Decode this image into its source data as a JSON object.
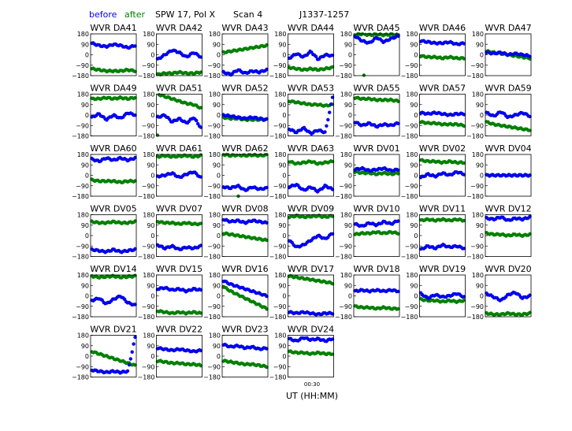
{
  "header": {
    "before_label": "before",
    "after_label": "after",
    "spw_pol": "SPW 17, Pol X",
    "scan": "Scan 4",
    "source": "J1337-1257"
  },
  "colors": {
    "before": "#0000ee",
    "after": "#008000"
  },
  "x_label": "UT (HH:MM)",
  "x_tick_label": "00:30",
  "y_ticks": [
    "180",
    "90",
    "0",
    "−90",
    "−180"
  ],
  "chart_data": {
    "type": "scatter",
    "x": "UT (HH:MM)",
    "ylim": [
      -180,
      180
    ],
    "yticks": [
      180,
      90,
      0,
      -90,
      -180
    ],
    "series_names": [
      "before",
      "after"
    ],
    "panels": [
      {
        "title": "WVR DA41",
        "before": [
          100,
          80,
          70,
          90,
          80,
          60,
          80
        ],
        "after": [
          -120,
          -130,
          -140,
          -140,
          -140,
          -130,
          -140
        ]
      },
      {
        "title": "WVR DA42",
        "before": [
          -40,
          0,
          40,
          20,
          -20,
          20,
          -20
        ],
        "after": [
          -170,
          -160,
          -160,
          -150,
          -160,
          -160,
          -150
        ]
      },
      {
        "title": "WVR DA43",
        "before": [
          -150,
          -170,
          -130,
          -160,
          -140,
          -150,
          -130
        ],
        "after": [
          20,
          30,
          40,
          50,
          60,
          70,
          80
        ]
      },
      {
        "title": "WVR DA44",
        "before": [
          -30,
          10,
          -20,
          30,
          -40,
          0,
          -10
        ],
        "after": [
          -110,
          -120,
          -130,
          -120,
          -130,
          -120,
          -110
        ]
      },
      {
        "title": "WVR DA45",
        "before": [
          160,
          120,
          100,
          150,
          110,
          140,
          160
        ],
        "after": [
          170,
          180,
          170,
          175,
          170,
          175,
          170
        ]
      },
      {
        "title": "WVR DA46",
        "before": [
          120,
          110,
          100,
          100,
          110,
          90,
          100
        ],
        "after": [
          -10,
          -20,
          -20,
          -30,
          -20,
          -30,
          -30
        ]
      },
      {
        "title": "WVR DA47",
        "before": [
          20,
          10,
          20,
          0,
          10,
          0,
          -10
        ],
        "after": [
          30,
          20,
          10,
          0,
          -10,
          -20,
          -30
        ]
      },
      {
        "title": "WVR DA49",
        "before": [
          -20,
          10,
          -40,
          0,
          -30,
          20,
          0
        ],
        "after": [
          140,
          140,
          150,
          140,
          150,
          140,
          150
        ]
      },
      {
        "title": "WVR DA51",
        "before": [
          -20,
          0,
          -60,
          -30,
          -70,
          -20,
          -110
        ],
        "after": [
          180,
          160,
          140,
          120,
          100,
          90,
          60
        ]
      },
      {
        "title": "WVR DA52",
        "before": [
          0,
          -10,
          -20,
          -30,
          -20,
          -30,
          -40
        ],
        "after": [
          -20,
          -30,
          -30,
          -40,
          -40,
          -40,
          -40
        ]
      },
      {
        "title": "WVR DA53",
        "before": [
          -120,
          -150,
          -110,
          -160,
          -130,
          -150,
          150
        ],
        "after": [
          120,
          110,
          100,
          90,
          90,
          80,
          90
        ]
      },
      {
        "title": "WVR DA55",
        "before": [
          -60,
          -90,
          -70,
          -100,
          -80,
          -90,
          -70
        ],
        "after": [
          150,
          140,
          140,
          130,
          130,
          130,
          120
        ]
      },
      {
        "title": "WVR DA57",
        "before": [
          20,
          10,
          20,
          10,
          0,
          10,
          10
        ],
        "after": [
          -60,
          -70,
          -70,
          -80,
          -80,
          -80,
          -90
        ]
      },
      {
        "title": "WVR DA59",
        "before": [
          20,
          -10,
          30,
          -20,
          0,
          20,
          -10
        ],
        "after": [
          -60,
          -80,
          -90,
          -100,
          -110,
          -120,
          -130
        ]
      },
      {
        "title": "WVR DA60",
        "before": [
          140,
          120,
          150,
          130,
          150,
          130,
          150
        ],
        "after": [
          -40,
          -50,
          -50,
          -50,
          -60,
          -50,
          -50
        ]
      },
      {
        "title": "WVR DA61",
        "before": [
          -10,
          0,
          20,
          -20,
          10,
          30,
          -20
        ],
        "after": [
          160,
          170,
          160,
          165,
          170,
          160,
          170
        ]
      },
      {
        "title": "WVR DA62",
        "before": [
          -100,
          -110,
          -90,
          -130,
          -100,
          -120,
          -110
        ],
        "after": [
          180,
          170,
          175,
          170,
          175,
          170,
          175
        ]
      },
      {
        "title": "WVR DA63",
        "before": [
          -100,
          -80,
          -130,
          -100,
          -140,
          -90,
          -120
        ],
        "after": [
          120,
          100,
          110,
          120,
          100,
          110,
          120
        ]
      },
      {
        "title": "WVR DV01",
        "before": [
          50,
          60,
          40,
          50,
          60,
          40,
          50
        ],
        "after": [
          30,
          20,
          20,
          10,
          20,
          10,
          20
        ]
      },
      {
        "title": "WVR DV02",
        "before": [
          -20,
          10,
          -10,
          20,
          0,
          30,
          10
        ],
        "after": [
          130,
          120,
          120,
          110,
          120,
          110,
          110
        ]
      },
      {
        "title": "WVR DV04",
        "before": [
          0,
          0,
          0,
          0,
          0,
          0,
          0
        ],
        "after": [
          0,
          0,
          0,
          0,
          0,
          0,
          0
        ]
      },
      {
        "title": "WVR DV05",
        "before": [
          -120,
          -130,
          -140,
          -120,
          -140,
          -130,
          -120
        ],
        "after": [
          120,
          110,
          110,
          120,
          110,
          110,
          120
        ]
      },
      {
        "title": "WVR DV07",
        "before": [
          -80,
          -110,
          -90,
          -120,
          -100,
          -110,
          -90
        ],
        "after": [
          120,
          110,
          110,
          100,
          110,
          100,
          100
        ]
      },
      {
        "title": "WVR DV08",
        "before": [
          140,
          120,
          130,
          110,
          130,
          120,
          110
        ],
        "after": [
          20,
          10,
          0,
          -10,
          -20,
          -30,
          -40
        ]
      },
      {
        "title": "WVR DV09",
        "before": [
          -40,
          -100,
          -80,
          -40,
          0,
          -30,
          20
        ],
        "after": [
          160,
          170,
          160,
          165,
          170,
          160,
          170
        ]
      },
      {
        "title": "WVR DV10",
        "before": [
          100,
          80,
          110,
          90,
          120,
          100,
          130
        ],
        "after": [
          10,
          20,
          20,
          30,
          20,
          30,
          20
        ]
      },
      {
        "title": "WVR DV11",
        "before": [
          -120,
          -90,
          -110,
          -80,
          -100,
          -90,
          -110
        ],
        "after": [
          130,
          140,
          130,
          140,
          130,
          140,
          130
        ]
      },
      {
        "title": "WVR DV12",
        "before": [
          150,
          140,
          160,
          130,
          150,
          140,
          160
        ],
        "after": [
          20,
          10,
          10,
          0,
          10,
          0,
          10
        ]
      },
      {
        "title": "WVR DV14",
        "before": [
          -40,
          -20,
          -70,
          -30,
          0,
          -60,
          -80
        ],
        "after": [
          170,
          160,
          165,
          170,
          160,
          165,
          170
        ]
      },
      {
        "title": "WVR DV15",
        "before": [
          60,
          70,
          50,
          60,
          40,
          60,
          50
        ],
        "after": [
          -130,
          -140,
          -150,
          -140,
          -150,
          -140,
          -150
        ]
      },
      {
        "title": "WVR DV16",
        "before": [
          130,
          100,
          80,
          60,
          40,
          20,
          0
        ],
        "after": [
          80,
          40,
          10,
          -20,
          -50,
          -80,
          -110
        ]
      },
      {
        "title": "WVR DV17",
        "before": [
          -140,
          -150,
          -140,
          -150,
          -160,
          -150,
          -150
        ],
        "after": [
          170,
          160,
          150,
          140,
          130,
          120,
          110
        ]
      },
      {
        "title": "WVR DV18",
        "before": [
          40,
          50,
          40,
          50,
          40,
          50,
          40
        ],
        "after": [
          -90,
          -100,
          -100,
          -110,
          -100,
          -110,
          -110
        ]
      },
      {
        "title": "WVR DV19",
        "before": [
          20,
          -20,
          10,
          -10,
          0,
          20,
          -10
        ],
        "after": [
          -30,
          -40,
          -40,
          -50,
          -40,
          -50,
          -40
        ]
      },
      {
        "title": "WVR DV20",
        "before": [
          20,
          -10,
          -40,
          10,
          30,
          -20,
          0
        ],
        "after": [
          -150,
          -160,
          -160,
          -150,
          -160,
          -160,
          -150
        ]
      },
      {
        "title": "WVR DV21",
        "before": [
          -120,
          -130,
          -140,
          -130,
          -140,
          -130,
          160
        ],
        "after": [
          40,
          20,
          0,
          -20,
          -40,
          -60,
          -80
        ]
      },
      {
        "title": "WVR DV22",
        "before": [
          70,
          60,
          50,
          60,
          50,
          40,
          50
        ],
        "after": [
          -40,
          -50,
          -60,
          -60,
          -70,
          -70,
          -80
        ]
      },
      {
        "title": "WVR DV23",
        "before": [
          100,
          80,
          90,
          70,
          80,
          60,
          70
        ],
        "after": [
          -40,
          -50,
          -60,
          -70,
          -70,
          -80,
          -90
        ]
      },
      {
        "title": "WVR DV24",
        "before": [
          150,
          130,
          160,
          140,
          150,
          130,
          150
        ],
        "after": [
          40,
          30,
          30,
          20,
          30,
          20,
          20
        ]
      }
    ]
  }
}
